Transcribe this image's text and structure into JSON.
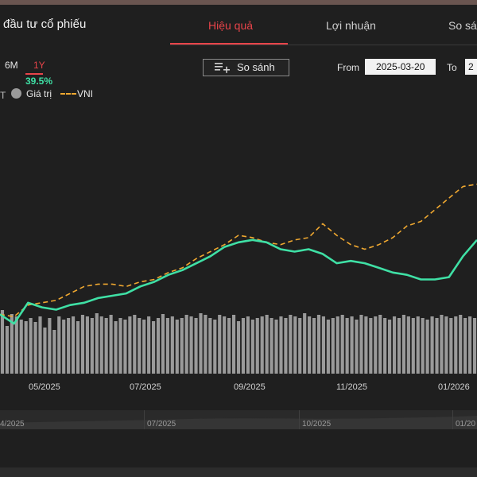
{
  "title": "đầu tư cổ phiếu",
  "tabs": [
    {
      "label": "Hiệu quả",
      "active": true
    },
    {
      "label": "Lợi nhuận",
      "active": false
    },
    {
      "label": "So sá",
      "active": false
    }
  ],
  "ranges": [
    {
      "label": "6M",
      "active": false
    },
    {
      "label": "1Y",
      "active": true
    }
  ],
  "selected_return": "39.5%",
  "compare_label": "So sánh",
  "date_filter": {
    "from_label": "From",
    "from_value": "2025-03-20",
    "to_label": "To",
    "to_value": "2"
  },
  "legend": {
    "value_label": "Giá trị",
    "index_label": "VNI",
    "partial_mark": "T"
  },
  "x_ticks": [
    "05/2025",
    "07/2025",
    "09/2025",
    "11/2025",
    "01/2026"
  ],
  "navigator_ticks": [
    "4/2025",
    "07/2025",
    "10/2025",
    "01/20"
  ],
  "colors": {
    "accent": "#e8444a",
    "portfolio": "#3fe0a5",
    "index": "#f0a830",
    "volume": "#9a9a9a"
  },
  "chart_data": {
    "type": "line",
    "x_range": [
      "2025-03-20",
      "2026-03"
    ],
    "series": [
      {
        "name": "Giá trị",
        "type": "line",
        "values": [
          0.0,
          -4.0,
          5.0,
          3.0,
          2.0,
          4.0,
          5.0,
          7.0,
          8.0,
          9.0,
          12.0,
          14.0,
          17.0,
          19.0,
          22.0,
          25.0,
          29.0,
          31.0,
          32.0,
          31.0,
          28.0,
          27.0,
          28.0,
          26.0,
          22.0,
          23.0,
          22.0,
          20.0,
          18.0,
          17.0,
          15.0,
          15.0,
          16.0,
          25.0,
          32.0
        ]
      },
      {
        "name": "VNI",
        "type": "line",
        "dashed": true,
        "values": [
          0.0,
          -1.0,
          4.0,
          5.0,
          6.0,
          9.0,
          12.0,
          13.0,
          13.0,
          12.0,
          14.0,
          15.0,
          18.0,
          20.0,
          24.0,
          27.0,
          30.0,
          34.0,
          33.0,
          31.0,
          30.0,
          32.0,
          33.0,
          39.0,
          34.0,
          30.0,
          28.0,
          30.0,
          33.0,
          38.0,
          40.0,
          45.0,
          50.0,
          55.0,
          56.0
        ]
      },
      {
        "name": "volume",
        "type": "bar",
        "values": [
          80,
          60,
          75,
          72,
          68,
          66,
          70,
          65,
          72,
          58,
          70,
          55,
          72,
          68,
          70,
          72,
          66,
          74,
          72,
          70,
          76,
          72,
          70,
          74,
          66,
          70,
          68,
          72,
          74,
          70,
          68,
          72,
          66,
          70,
          75,
          70,
          72,
          68,
          70,
          74,
          72,
          70,
          76,
          74,
          70,
          68,
          74,
          72,
          70,
          74,
          66,
          70,
          72,
          68,
          70,
          72,
          74,
          70,
          68,
          72,
          70,
          74,
          72,
          70,
          76,
          72,
          70,
          74,
          72,
          68,
          70,
          72,
          74,
          70,
          72,
          68,
          74,
          72,
          70,
          72,
          74,
          70,
          68,
          72,
          70,
          74,
          72,
          70,
          72,
          70,
          68,
          72,
          70,
          74,
          72,
          70,
          72,
          74,
          70,
          72,
          70
        ]
      }
    ]
  }
}
